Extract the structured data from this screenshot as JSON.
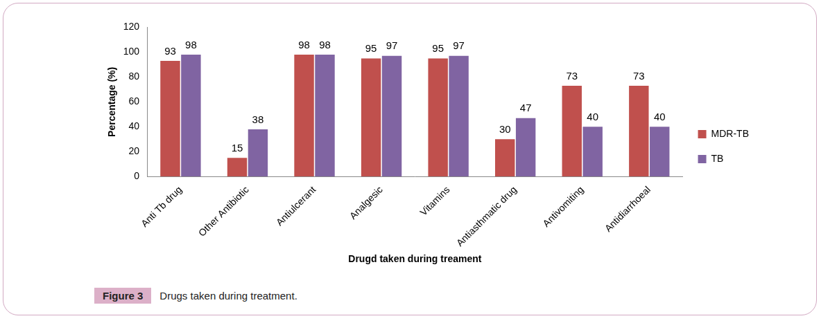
{
  "chart_data": {
    "type": "bar",
    "categories": [
      "Anti Tb drug",
      "Other Antibiotic",
      "Antiulcerant",
      "Analgesic",
      "Vitamins",
      "Antiasthmatic drug",
      "Antivomiting",
      "Antidiarrhoeal"
    ],
    "series": [
      {
        "name": "MDR-TB",
        "color": "#c0504d",
        "values": [
          93,
          15,
          98,
          95,
          95,
          30,
          73,
          73
        ]
      },
      {
        "name": "TB",
        "color": "#8064a2",
        "values": [
          98,
          38,
          98,
          97,
          97,
          47,
          40,
          40
        ]
      }
    ],
    "x_label": "Drugd taken during treament",
    "y_label": "Percentage (%)",
    "ylim": [
      0,
      120
    ],
    "yticks": [
      0,
      20,
      40,
      60,
      80,
      100,
      120
    ],
    "grid": false,
    "legend": "right",
    "data_labels": true
  },
  "figure": {
    "label": "Figure 3",
    "caption": "Drugs taken during treatment."
  }
}
